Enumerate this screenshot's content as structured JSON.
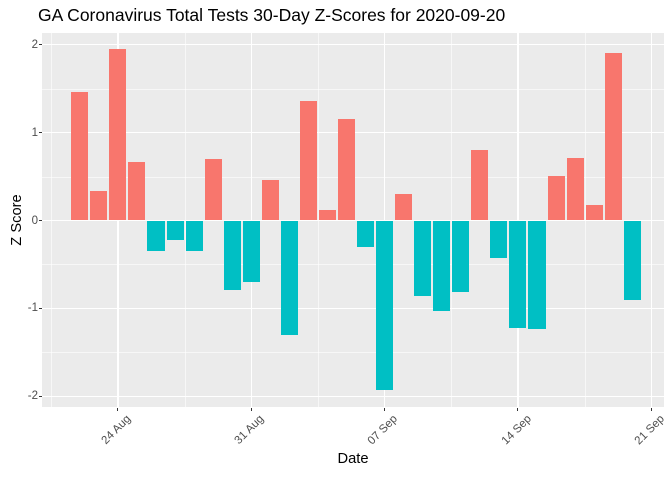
{
  "chart_data": {
    "type": "bar",
    "title": "GA Coronavirus Total Tests 30-Day Z-Scores for 2020-09-20",
    "xlabel": "Date",
    "ylabel": "Z Score",
    "x": [
      "2020-08-22",
      "2020-08-23",
      "2020-08-24",
      "2020-08-25",
      "2020-08-26",
      "2020-08-27",
      "2020-08-28",
      "2020-08-29",
      "2020-08-30",
      "2020-08-31",
      "2020-09-01",
      "2020-09-02",
      "2020-09-03",
      "2020-09-04",
      "2020-09-05",
      "2020-09-06",
      "2020-09-07",
      "2020-09-08",
      "2020-09-09",
      "2020-09-10",
      "2020-09-11",
      "2020-09-12",
      "2020-09-13",
      "2020-09-14",
      "2020-09-15",
      "2020-09-16",
      "2020-09-17",
      "2020-09-18",
      "2020-09-19",
      "2020-09-20"
    ],
    "values": [
      1.46,
      0.34,
      1.95,
      0.66,
      -0.35,
      -0.22,
      -0.35,
      0.7,
      -0.79,
      -0.7,
      0.46,
      -1.3,
      1.36,
      0.12,
      1.16,
      -0.3,
      -1.93,
      0.3,
      -0.86,
      -1.03,
      -0.81,
      0.8,
      -0.43,
      -1.22,
      -1.24,
      0.51,
      0.71,
      0.18,
      1.9,
      -0.91
    ],
    "x_tick_labels": [
      "24 Aug",
      "31 Aug",
      "07 Sep",
      "14 Sep",
      "21 Sep"
    ],
    "x_tick_day_offsets": [
      2,
      9,
      16,
      23,
      30
    ],
    "y_ticks": [
      2,
      1,
      0,
      -1,
      -2
    ],
    "y_minor_ticks": [
      1.5,
      0.5,
      -0.5,
      -1.5
    ],
    "ylim": [
      -2.13,
      2.14
    ],
    "grid": "major-and-minor-white",
    "legend": "none",
    "colors": {
      "positive_bar": "#F8766D",
      "negative_bar": "#00BFC4",
      "panel_background": "#EBEBEB",
      "gridline": "#FFFFFF",
      "tick_label": "#4D4D4D",
      "tick_mark": "#333333",
      "title_text": "#000000"
    }
  }
}
